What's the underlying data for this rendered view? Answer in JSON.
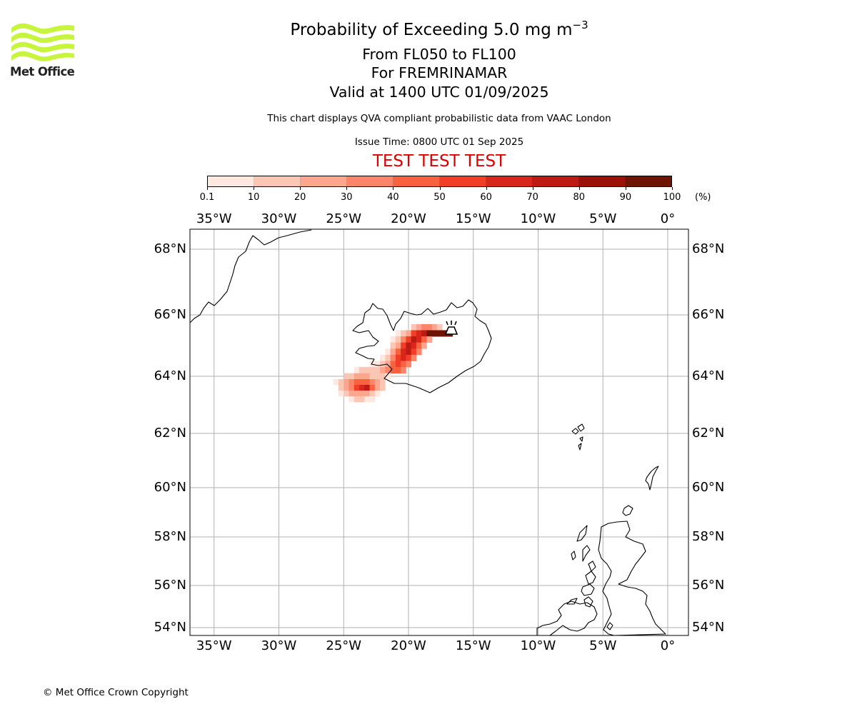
{
  "logo": {
    "text": "Met Office",
    "wave_color": "#c6f53c"
  },
  "header": {
    "title_main": "Probability of Exceeding 5.0 mg m",
    "title_exp": "−3",
    "levels": "From FL050 to FL100",
    "for_line": "For FREMRINAMAR",
    "valid": "Valid at 1400 UTC 01/09/2025",
    "description": "This chart displays QVA compliant probabilistic data from VAAC London",
    "issue_time": "Issue Time: 0800 UTC 01 Sep 2025",
    "test_banner": "TEST TEST TEST",
    "test_color": "#dd0000"
  },
  "colorbar": {
    "ticks": [
      "0.1",
      "10",
      "20",
      "30",
      "40",
      "50",
      "60",
      "70",
      "80",
      "90",
      "100"
    ],
    "unit": "(%)",
    "colors": [
      "#fee8df",
      "#fcc6b4",
      "#fca58f",
      "#fb8469",
      "#f9623f",
      "#f23e26",
      "#d9261c",
      "#bd1a14",
      "#9b1009",
      "#6f1404"
    ]
  },
  "map": {
    "lon_labels": [
      "35°W",
      "30°W",
      "25°W",
      "20°W",
      "15°W",
      "10°W",
      "5°W",
      "0°"
    ],
    "lat_labels": [
      "68°N",
      "66°N",
      "64°N",
      "62°N",
      "60°N",
      "58°N",
      "56°N",
      "54°N"
    ],
    "volcano_icon": "volcano-icon",
    "plume_cells": [
      {
        "lon": -19.6,
        "lat": 65.6,
        "pct": 15
      },
      {
        "lon": -19.2,
        "lat": 65.6,
        "pct": 25
      },
      {
        "lon": -18.8,
        "lat": 65.6,
        "pct": 35
      },
      {
        "lon": -18.4,
        "lat": 65.6,
        "pct": 35
      },
      {
        "lon": -18.0,
        "lat": 65.6,
        "pct": 25
      },
      {
        "lon": -17.6,
        "lat": 65.6,
        "pct": 15
      },
      {
        "lon": -20.8,
        "lat": 65.4,
        "pct": 5
      },
      {
        "lon": -20.4,
        "lat": 65.4,
        "pct": 15
      },
      {
        "lon": -20.0,
        "lat": 65.4,
        "pct": 25
      },
      {
        "lon": -19.6,
        "lat": 65.4,
        "pct": 55
      },
      {
        "lon": -19.2,
        "lat": 65.4,
        "pct": 65
      },
      {
        "lon": -18.8,
        "lat": 65.4,
        "pct": 75
      },
      {
        "lon": -18.4,
        "lat": 65.4,
        "pct": 95
      },
      {
        "lon": -18.0,
        "lat": 65.4,
        "pct": 95
      },
      {
        "lon": -17.6,
        "lat": 65.4,
        "pct": 95
      },
      {
        "lon": -17.2,
        "lat": 65.4,
        "pct": 95
      },
      {
        "lon": -16.8,
        "lat": 65.4,
        "pct": 95
      },
      {
        "lon": -21.2,
        "lat": 65.2,
        "pct": 5
      },
      {
        "lon": -20.8,
        "lat": 65.2,
        "pct": 15
      },
      {
        "lon": -20.4,
        "lat": 65.2,
        "pct": 35
      },
      {
        "lon": -20.0,
        "lat": 65.2,
        "pct": 55
      },
      {
        "lon": -19.6,
        "lat": 65.2,
        "pct": 75
      },
      {
        "lon": -19.2,
        "lat": 65.2,
        "pct": 65
      },
      {
        "lon": -18.8,
        "lat": 65.2,
        "pct": 45
      },
      {
        "lon": -18.4,
        "lat": 65.2,
        "pct": 25
      },
      {
        "lon": -21.2,
        "lat": 65.0,
        "pct": 15
      },
      {
        "lon": -20.8,
        "lat": 65.0,
        "pct": 25
      },
      {
        "lon": -20.4,
        "lat": 65.0,
        "pct": 55
      },
      {
        "lon": -20.0,
        "lat": 65.0,
        "pct": 75
      },
      {
        "lon": -19.6,
        "lat": 65.0,
        "pct": 65
      },
      {
        "lon": -19.2,
        "lat": 65.0,
        "pct": 45
      },
      {
        "lon": -18.8,
        "lat": 65.0,
        "pct": 25
      },
      {
        "lon": -21.6,
        "lat": 64.8,
        "pct": 5
      },
      {
        "lon": -21.2,
        "lat": 64.8,
        "pct": 25
      },
      {
        "lon": -20.8,
        "lat": 64.8,
        "pct": 45
      },
      {
        "lon": -20.4,
        "lat": 64.8,
        "pct": 65
      },
      {
        "lon": -20.0,
        "lat": 64.8,
        "pct": 75
      },
      {
        "lon": -19.6,
        "lat": 64.8,
        "pct": 55
      },
      {
        "lon": -19.2,
        "lat": 64.8,
        "pct": 35
      },
      {
        "lon": -22.0,
        "lat": 64.6,
        "pct": 5
      },
      {
        "lon": -21.6,
        "lat": 64.6,
        "pct": 15
      },
      {
        "lon": -21.2,
        "lat": 64.6,
        "pct": 35
      },
      {
        "lon": -20.8,
        "lat": 64.6,
        "pct": 55
      },
      {
        "lon": -20.4,
        "lat": 64.6,
        "pct": 65
      },
      {
        "lon": -20.0,
        "lat": 64.6,
        "pct": 55
      },
      {
        "lon": -19.6,
        "lat": 64.6,
        "pct": 35
      },
      {
        "lon": -22.8,
        "lat": 64.4,
        "pct": 5
      },
      {
        "lon": -22.4,
        "lat": 64.4,
        "pct": 5
      },
      {
        "lon": -22.0,
        "lat": 64.4,
        "pct": 15
      },
      {
        "lon": -21.6,
        "lat": 64.4,
        "pct": 25
      },
      {
        "lon": -21.2,
        "lat": 64.4,
        "pct": 45
      },
      {
        "lon": -20.8,
        "lat": 64.4,
        "pct": 55
      },
      {
        "lon": -20.4,
        "lat": 64.4,
        "pct": 45
      },
      {
        "lon": -20.0,
        "lat": 64.4,
        "pct": 35
      },
      {
        "lon": -24.0,
        "lat": 64.2,
        "pct": 5
      },
      {
        "lon": -23.6,
        "lat": 64.2,
        "pct": 15
      },
      {
        "lon": -23.2,
        "lat": 64.2,
        "pct": 15
      },
      {
        "lon": -22.8,
        "lat": 64.2,
        "pct": 15
      },
      {
        "lon": -22.4,
        "lat": 64.2,
        "pct": 15
      },
      {
        "lon": -22.0,
        "lat": 64.2,
        "pct": 25
      },
      {
        "lon": -21.6,
        "lat": 64.2,
        "pct": 35
      },
      {
        "lon": -21.2,
        "lat": 64.2,
        "pct": 45
      },
      {
        "lon": -20.8,
        "lat": 64.2,
        "pct": 45
      },
      {
        "lon": -20.4,
        "lat": 64.2,
        "pct": 35
      },
      {
        "lon": -24.8,
        "lat": 64.0,
        "pct": 15
      },
      {
        "lon": -24.4,
        "lat": 64.0,
        "pct": 15
      },
      {
        "lon": -24.0,
        "lat": 64.0,
        "pct": 25
      },
      {
        "lon": -23.6,
        "lat": 64.0,
        "pct": 25
      },
      {
        "lon": -23.2,
        "lat": 64.0,
        "pct": 25
      },
      {
        "lon": -22.8,
        "lat": 64.0,
        "pct": 15
      },
      {
        "lon": -22.4,
        "lat": 64.0,
        "pct": 15
      },
      {
        "lon": -22.0,
        "lat": 64.0,
        "pct": 15
      },
      {
        "lon": -21.6,
        "lat": 64.0,
        "pct": 5
      },
      {
        "lon": -25.6,
        "lat": 63.8,
        "pct": 5
      },
      {
        "lon": -25.2,
        "lat": 63.8,
        "pct": 15
      },
      {
        "lon": -24.8,
        "lat": 63.8,
        "pct": 25
      },
      {
        "lon": -24.4,
        "lat": 63.8,
        "pct": 35
      },
      {
        "lon": -24.0,
        "lat": 63.8,
        "pct": 45
      },
      {
        "lon": -23.6,
        "lat": 63.8,
        "pct": 45
      },
      {
        "lon": -23.2,
        "lat": 63.8,
        "pct": 45
      },
      {
        "lon": -22.8,
        "lat": 63.8,
        "pct": 35
      },
      {
        "lon": -22.4,
        "lat": 63.8,
        "pct": 25
      },
      {
        "lon": -22.0,
        "lat": 63.8,
        "pct": 15
      },
      {
        "lon": -25.2,
        "lat": 63.6,
        "pct": 15
      },
      {
        "lon": -24.8,
        "lat": 63.6,
        "pct": 25
      },
      {
        "lon": -24.4,
        "lat": 63.6,
        "pct": 35
      },
      {
        "lon": -24.0,
        "lat": 63.6,
        "pct": 55
      },
      {
        "lon": -23.6,
        "lat": 63.6,
        "pct": 65
      },
      {
        "lon": -23.2,
        "lat": 63.6,
        "pct": 75
      },
      {
        "lon": -22.8,
        "lat": 63.6,
        "pct": 45
      },
      {
        "lon": -22.4,
        "lat": 63.6,
        "pct": 25
      },
      {
        "lon": -22.0,
        "lat": 63.6,
        "pct": 15
      },
      {
        "lon": -25.2,
        "lat": 63.4,
        "pct": 5
      },
      {
        "lon": -24.8,
        "lat": 63.4,
        "pct": 15
      },
      {
        "lon": -24.4,
        "lat": 63.4,
        "pct": 25
      },
      {
        "lon": -24.0,
        "lat": 63.4,
        "pct": 25
      },
      {
        "lon": -23.6,
        "lat": 63.4,
        "pct": 25
      },
      {
        "lon": -23.2,
        "lat": 63.4,
        "pct": 25
      },
      {
        "lon": -22.8,
        "lat": 63.4,
        "pct": 15
      },
      {
        "lon": -22.4,
        "lat": 63.4,
        "pct": 5
      },
      {
        "lon": -24.4,
        "lat": 63.2,
        "pct": 5
      },
      {
        "lon": -24.0,
        "lat": 63.2,
        "pct": 15
      },
      {
        "lon": -23.6,
        "lat": 63.2,
        "pct": 15
      },
      {
        "lon": -23.2,
        "lat": 63.2,
        "pct": 5
      },
      {
        "lon": -22.8,
        "lat": 63.2,
        "pct": 5
      }
    ]
  },
  "footer": {
    "copyright": "© Met Office Crown Copyright"
  }
}
